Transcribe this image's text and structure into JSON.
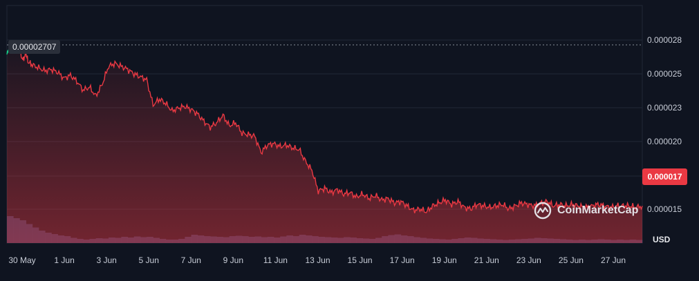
{
  "chart_data": {
    "type": "area",
    "currency": "USD",
    "x_tick_labels": [
      "30 May",
      "1 Jun",
      "3 Jun",
      "5 Jun",
      "7 Jun",
      "9 Jun",
      "11 Jun",
      "13 Jun",
      "15 Jun",
      "17 Jun",
      "19 Jun",
      "21 Jun",
      "23 Jun",
      "25 Jun",
      "27 Jun"
    ],
    "y_tick_labels": [
      "0.000028",
      "0.000025",
      "0.000023",
      "0.000020",
      "0.000017",
      "0.000015"
    ],
    "reference_price": "0.00002707",
    "current_price": "0.000017",
    "xlim_days": [
      0,
      30
    ],
    "ylim": [
      1.45e-05,
      3.05e-05
    ],
    "series": [
      {
        "values_x_days": [
          0,
          0.15,
          0.3,
          0.45,
          0.6,
          0.75,
          0.9,
          1.0,
          1.2,
          1.5,
          1.8,
          2.1,
          2.4,
          2.7,
          3.0,
          3.3,
          3.6,
          3.9,
          4.2,
          4.5,
          4.8,
          5.1,
          5.4,
          5.7,
          6.0,
          6.3,
          6.6,
          6.9,
          7.2,
          7.5,
          7.8,
          8.1,
          8.4,
          8.7,
          9.0,
          9.3,
          9.6,
          9.9,
          10.2,
          10.5,
          10.8,
          11.1,
          11.4,
          11.7,
          12.0,
          12.3,
          12.6,
          12.9,
          13.2,
          13.5,
          13.8,
          14.1,
          14.4,
          14.7,
          15.0,
          15.3,
          15.6,
          15.9,
          16.2,
          16.5,
          16.8,
          17.1,
          17.4,
          17.7,
          18.0,
          18.3,
          18.6,
          18.9,
          19.2,
          19.5,
          19.8,
          20.1,
          20.4,
          20.7,
          21.0,
          21.3,
          21.6,
          21.9,
          22.2,
          22.5,
          22.8,
          23.1,
          23.4,
          23.7,
          24.0,
          24.3,
          24.6,
          24.9,
          25.2,
          25.5,
          25.8,
          26.1,
          26.4,
          26.7,
          27.0,
          27.3,
          27.6,
          27.9,
          28.2,
          28.5,
          28.8,
          29.1,
          29.4,
          29.7,
          30.0
        ],
        "values_y": [
          2.72e-05,
          2.78e-05,
          2.76e-05,
          2.81e-05,
          2.75e-05,
          2.68e-05,
          2.73e-05,
          2.67e-05,
          2.65e-05,
          2.63e-05,
          2.61e-05,
          2.62e-05,
          2.6e-05,
          2.56e-05,
          2.58e-05,
          2.54e-05,
          2.48e-05,
          2.5e-05,
          2.44e-05,
          2.52e-05,
          2.64e-05,
          2.66e-05,
          2.64e-05,
          2.62e-05,
          2.59e-05,
          2.57e-05,
          2.55e-05,
          2.38e-05,
          2.42e-05,
          2.39e-05,
          2.34e-05,
          2.36e-05,
          2.37e-05,
          2.35e-05,
          2.32e-05,
          2.27e-05,
          2.23e-05,
          2.26e-05,
          2.31e-05,
          2.24e-05,
          2.26e-05,
          2.19e-05,
          2.18e-05,
          2.17e-05,
          2.06e-05,
          2.11e-05,
          2.12e-05,
          2.1e-05,
          2.11e-05,
          2.09e-05,
          2.08e-05,
          2e-05,
          1.94e-05,
          1.8e-05,
          1.82e-05,
          1.79e-05,
          1.81e-05,
          1.78e-05,
          1.79e-05,
          1.76e-05,
          1.78e-05,
          1.75e-05,
          1.77e-05,
          1.74e-05,
          1.75e-05,
          1.72e-05,
          1.73e-05,
          1.7e-05,
          1.67e-05,
          1.68e-05,
          1.66e-05,
          1.7e-05,
          1.72e-05,
          1.74e-05,
          1.71e-05,
          1.73e-05,
          1.69e-05,
          1.68e-05,
          1.71e-05,
          1.7e-05,
          1.69e-05,
          1.7e-05,
          1.71e-05,
          1.68e-05,
          1.7e-05,
          1.72e-05,
          1.71e-05,
          1.7e-05,
          1.72e-05,
          1.73e-05,
          1.7e-05,
          1.71e-05,
          1.7e-05,
          1.71e-05,
          1.7e-05,
          1.69e-05,
          1.7e-05,
          1.71e-05,
          1.7e-05,
          1.69e-05,
          1.7e-05,
          1.7e-05,
          1.7e-05,
          1.69e-05,
          1.7e-05
        ]
      }
    ],
    "volume": [
      0.78,
      0.72,
      0.66,
      0.55,
      0.45,
      0.36,
      0.3,
      0.26,
      0.22,
      0.2,
      0.15,
      0.12,
      0.1,
      0.12,
      0.14,
      0.13,
      0.16,
      0.15,
      0.18,
      0.16,
      0.19,
      0.17,
      0.18,
      0.15,
      0.12,
      0.1,
      0.1,
      0.12,
      0.18,
      0.24,
      0.22,
      0.2,
      0.19,
      0.18,
      0.17,
      0.2,
      0.21,
      0.2,
      0.18,
      0.19,
      0.17,
      0.18,
      0.16,
      0.19,
      0.22,
      0.2,
      0.24,
      0.22,
      0.2,
      0.18,
      0.17,
      0.16,
      0.15,
      0.17,
      0.16,
      0.14,
      0.13,
      0.12,
      0.15,
      0.2,
      0.23,
      0.25,
      0.22,
      0.2,
      0.17,
      0.15,
      0.13,
      0.12,
      0.11,
      0.1,
      0.12,
      0.14,
      0.16,
      0.15,
      0.13,
      0.12,
      0.11,
      0.1,
      0.09,
      0.1,
      0.11,
      0.12,
      0.13,
      0.15,
      0.14,
      0.13,
      0.12,
      0.11,
      0.1,
      0.09,
      0.1,
      0.09,
      0.1,
      0.11,
      0.1,
      0.09,
      0.1,
      0.09,
      0.1,
      0.09
    ],
    "colors": {
      "up": "#16c784",
      "down": "#ea3943",
      "grid": "#222836",
      "axis_text": "#c9ced8",
      "volume": "#34406a"
    },
    "grid": true
  },
  "watermark": "CoinMarketCap",
  "logo_icon": "coinmarketcap-logo-icon"
}
